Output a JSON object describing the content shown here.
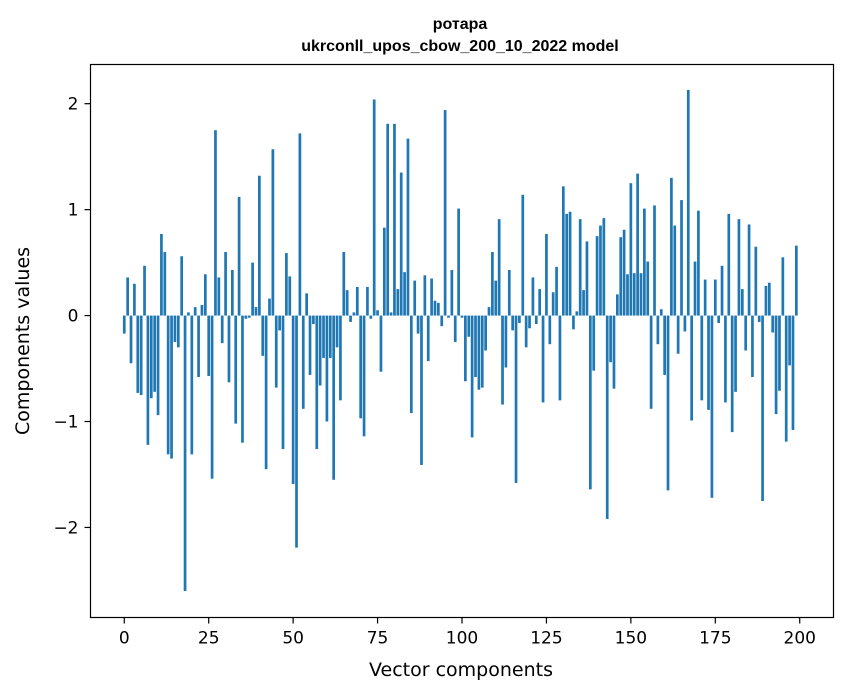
{
  "chart_data": {
    "type": "bar",
    "title": "ротара",
    "subtitle": "ukrconll_upos_cbow_200_10_2022 model",
    "xlabel": "Vector components",
    "ylabel": "Components values",
    "xlim": [
      -10,
      210
    ],
    "ylim": [
      -2.85,
      2.37
    ],
    "xticks": [
      0,
      25,
      50,
      75,
      100,
      125,
      150,
      175,
      200
    ],
    "yticks": [
      -2,
      -1,
      0,
      1,
      2
    ],
    "ytick_labels": [
      "−2",
      "−1",
      "0",
      "1",
      "2"
    ],
    "grid": false,
    "legend": "none",
    "bar_color": "#1f77b4",
    "x": [
      0,
      1,
      2,
      3,
      4,
      5,
      6,
      7,
      8,
      9,
      10,
      11,
      12,
      13,
      14,
      15,
      16,
      17,
      18,
      19,
      20,
      21,
      22,
      23,
      24,
      25,
      26,
      27,
      28,
      29,
      30,
      31,
      32,
      33,
      34,
      35,
      36,
      37,
      38,
      39,
      40,
      41,
      42,
      43,
      44,
      45,
      46,
      47,
      48,
      49,
      50,
      51,
      52,
      53,
      54,
      55,
      56,
      57,
      58,
      59,
      60,
      61,
      62,
      63,
      64,
      65,
      66,
      67,
      68,
      69,
      70,
      71,
      72,
      73,
      74,
      75,
      76,
      77,
      78,
      79,
      80,
      81,
      82,
      83,
      84,
      85,
      86,
      87,
      88,
      89,
      90,
      91,
      92,
      93,
      94,
      95,
      96,
      97,
      98,
      99,
      100,
      101,
      102,
      103,
      104,
      105,
      106,
      107,
      108,
      109,
      110,
      111,
      112,
      113,
      114,
      115,
      116,
      117,
      118,
      119,
      120,
      121,
      122,
      123,
      124,
      125,
      126,
      127,
      128,
      129,
      130,
      131,
      132,
      133,
      134,
      135,
      136,
      137,
      138,
      139,
      140,
      141,
      142,
      143,
      144,
      145,
      146,
      147,
      148,
      149,
      150,
      151,
      152,
      153,
      154,
      155,
      156,
      157,
      158,
      159,
      160,
      161,
      162,
      163,
      164,
      165,
      166,
      167,
      168,
      169,
      170,
      171,
      172,
      173,
      174,
      175,
      176,
      177,
      178,
      179,
      180,
      181,
      182,
      183,
      184,
      185,
      186,
      187,
      188,
      189,
      190,
      191,
      192,
      193,
      194,
      195,
      196,
      197,
      198,
      199
    ],
    "values": [
      -0.17,
      0.36,
      -0.45,
      0.3,
      -0.73,
      -0.75,
      0.47,
      -1.22,
      -0.78,
      -0.72,
      -0.94,
      0.77,
      0.6,
      -1.31,
      -1.35,
      -0.25,
      -0.3,
      0.56,
      -2.6,
      0.03,
      -1.31,
      0.08,
      -0.58,
      0.1,
      0.39,
      -0.57,
      -1.54,
      1.75,
      0.36,
      -0.26,
      0.6,
      -0.63,
      0.43,
      -1.02,
      1.12,
      -1.2,
      -0.03,
      -0.02,
      0.5,
      0.08,
      1.32,
      -0.38,
      -1.45,
      0.16,
      1.57,
      -0.68,
      -0.14,
      -1.26,
      0.59,
      0.37,
      -1.59,
      -2.19,
      1.72,
      -0.88,
      0.21,
      -0.56,
      -0.08,
      -1.26,
      -0.66,
      -0.4,
      -1.0,
      -0.4,
      -1.55,
      -0.3,
      -0.8,
      0.6,
      0.24,
      -0.06,
      0.03,
      0.27,
      -0.97,
      -1.14,
      0.27,
      -0.03,
      2.04,
      0.05,
      -0.53,
      0.83,
      1.81,
      0.03,
      1.81,
      0.25,
      1.35,
      0.41,
      1.67,
      -0.92,
      0.33,
      -0.17,
      -1.41,
      0.38,
      -0.43,
      0.35,
      0.14,
      0.12,
      -0.1,
      1.94,
      -0.02,
      0.43,
      -0.25,
      1.01,
      -0.02,
      -0.62,
      -0.2,
      -1.15,
      -0.58,
      -0.7,
      -0.68,
      -0.33,
      0.08,
      0.6,
      0.33,
      0.91,
      -0.84,
      -0.49,
      0.43,
      -0.14,
      -1.58,
      -0.07,
      1.14,
      -0.3,
      -0.12,
      0.36,
      -0.08,
      0.25,
      -0.82,
      0.77,
      -0.27,
      0.22,
      0.46,
      -0.8,
      1.22,
      0.96,
      0.98,
      -0.13,
      0.04,
      0.91,
      0.24,
      0.7,
      -1.64,
      -0.52,
      0.75,
      0.85,
      0.92,
      -1.92,
      -0.44,
      -0.69,
      0.2,
      0.74,
      0.81,
      0.39,
      1.25,
      0.4,
      1.34,
      0.4,
      1.01,
      0.51,
      -0.88,
      1.04,
      -0.27,
      0.06,
      -0.56,
      -1.65,
      1.3,
      0.85,
      -0.36,
      1.09,
      -0.15,
      2.13,
      -0.99,
      0.51,
      0.99,
      -0.8,
      0.34,
      -0.89,
      -1.72,
      0.34,
      -0.07,
      0.47,
      -0.82,
      0.96,
      -1.1,
      -0.72,
      0.91,
      0.25,
      -0.33,
      0.86,
      -0.58,
      0.65,
      -0.06,
      -1.75,
      0.28,
      0.31,
      -0.16,
      -0.93,
      -0.71,
      0.55,
      -1.19,
      -0.47,
      -1.08,
      0.66
    ]
  }
}
